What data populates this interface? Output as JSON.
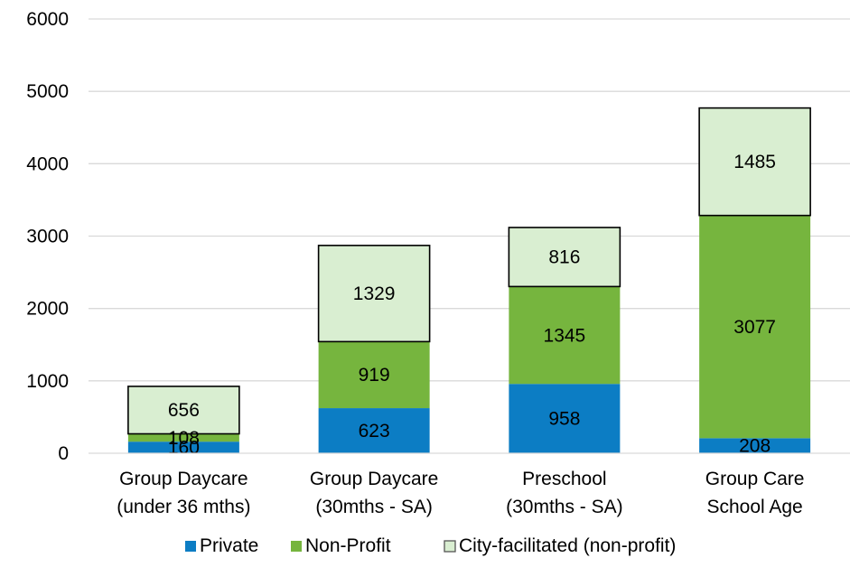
{
  "chart_data": {
    "type": "bar",
    "stacked": true,
    "categories": [
      [
        "Group Daycare",
        "(under 36 mths)"
      ],
      [
        "Group Daycare",
        "(30mths - SA)"
      ],
      [
        "Preschool",
        "(30mths - SA)"
      ],
      [
        "Group Care",
        "School Age"
      ]
    ],
    "series": [
      {
        "name": "Private",
        "values": [
          160,
          623,
          958,
          208
        ],
        "color": "#0C7DC4"
      },
      {
        "name": "Non-Profit",
        "values": [
          108,
          919,
          1345,
          3077
        ],
        "color": "#76B53E"
      },
      {
        "name": "City-facilitated (non-profit)",
        "values": [
          656,
          1329,
          816,
          1485
        ],
        "color": "#D9EED1",
        "outlined": true
      }
    ],
    "ylim": [
      0,
      6000
    ],
    "yticks": [
      0,
      1000,
      2000,
      3000,
      4000,
      5000,
      6000
    ],
    "grid": true,
    "legend_position": "bottom",
    "title": "",
    "xlabel": "",
    "ylabel": ""
  }
}
